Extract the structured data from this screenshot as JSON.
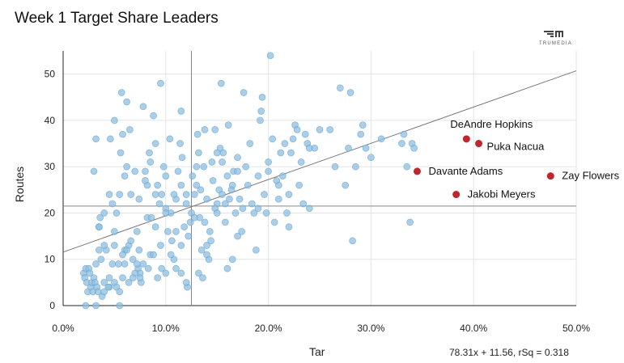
{
  "header": {
    "title": "Week 1 Target Share Leaders",
    "logo_text": "TRUMEDIA"
  },
  "fit_equation": "78.31x + 11.56, rSq = 0.318",
  "colors": {
    "point": "#8fbfe0",
    "point_stroke": "#5f9ec9",
    "highlight": "#c0272d",
    "grid": "#e4e4e4",
    "refline": "#888888"
  },
  "chart_data": {
    "type": "scatter",
    "title": "Week 1 Target Share Leaders",
    "xlabel": "Tar",
    "ylabel": "Routes",
    "xlim": [
      0,
      0.5
    ],
    "ylim": [
      0,
      55
    ],
    "xticks": [
      0.0,
      0.1,
      0.2,
      0.3,
      0.4,
      0.5
    ],
    "xtick_labels": [
      "0.0%",
      "10.0%",
      "20.0%",
      "30.0%",
      "40.0%",
      "50.0%"
    ],
    "yticks": [
      0,
      10,
      20,
      30,
      40,
      50
    ],
    "ytick_labels": [
      "0",
      "10",
      "20",
      "30",
      "40",
      "50"
    ],
    "grid": true,
    "reference_lines": {
      "x_mean": 0.125,
      "y_mean": 21.5
    },
    "trendline": {
      "slope": 78.31,
      "intercept": 11.56
    },
    "highlighted": [
      {
        "name": "DeAndre Hopkins",
        "x": 0.393,
        "y": 36
      },
      {
        "name": "Puka Nacua",
        "x": 0.405,
        "y": 35
      },
      {
        "name": "Davante Adams",
        "x": 0.345,
        "y": 29
      },
      {
        "name": "Zay Flowers",
        "x": 0.475,
        "y": 28
      },
      {
        "name": "Jakobi Meyers",
        "x": 0.383,
        "y": 24
      }
    ],
    "points": [
      [
        0.02,
        7
      ],
      [
        0.021,
        6
      ],
      [
        0.022,
        8
      ],
      [
        0.023,
        5
      ],
      [
        0.024,
        3
      ],
      [
        0.025,
        8
      ],
      [
        0.026,
        7
      ],
      [
        0.027,
        4
      ],
      [
        0.028,
        5
      ],
      [
        0.029,
        3
      ],
      [
        0.03,
        6
      ],
      [
        0.031,
        5
      ],
      [
        0.032,
        9
      ],
      [
        0.033,
        4
      ],
      [
        0.034,
        3
      ],
      [
        0.035,
        17
      ],
      [
        0.036,
        19
      ],
      [
        0.037,
        10
      ],
      [
        0.038,
        2
      ],
      [
        0.04,
        5
      ],
      [
        0.04,
        3
      ],
      [
        0.045,
        6
      ],
      [
        0.045,
        4
      ],
      [
        0.048,
        9
      ],
      [
        0.05,
        5
      ],
      [
        0.052,
        4
      ],
      [
        0.055,
        3
      ],
      [
        0.058,
        6
      ],
      [
        0.06,
        9
      ],
      [
        0.022,
        0
      ],
      [
        0.032,
        0
      ],
      [
        0.055,
        0
      ],
      [
        0.03,
        29
      ],
      [
        0.032,
        36
      ],
      [
        0.035,
        17
      ],
      [
        0.04,
        20
      ],
      [
        0.042,
        12
      ],
      [
        0.045,
        24
      ],
      [
        0.048,
        22
      ],
      [
        0.05,
        16
      ],
      [
        0.052,
        20
      ],
      [
        0.055,
        24
      ],
      [
        0.056,
        33
      ],
      [
        0.057,
        46
      ],
      [
        0.058,
        37
      ],
      [
        0.06,
        28
      ],
      [
        0.062,
        30
      ],
      [
        0.064,
        13
      ],
      [
        0.065,
        38
      ],
      [
        0.066,
        24
      ],
      [
        0.068,
        10
      ],
      [
        0.07,
        29
      ],
      [
        0.072,
        16
      ],
      [
        0.073,
        8
      ],
      [
        0.074,
        12
      ],
      [
        0.075,
        7
      ],
      [
        0.076,
        5
      ],
      [
        0.078,
        43
      ],
      [
        0.08,
        29
      ],
      [
        0.082,
        19
      ],
      [
        0.084,
        33
      ],
      [
        0.085,
        11
      ],
      [
        0.086,
        19
      ],
      [
        0.088,
        41
      ],
      [
        0.09,
        35
      ],
      [
        0.092,
        26
      ],
      [
        0.094,
        22
      ],
      [
        0.095,
        48
      ],
      [
        0.096,
        24
      ],
      [
        0.098,
        30
      ],
      [
        0.1,
        21
      ],
      [
        0.102,
        16
      ],
      [
        0.104,
        36
      ],
      [
        0.105,
        20
      ],
      [
        0.106,
        14
      ],
      [
        0.108,
        10
      ],
      [
        0.11,
        8
      ],
      [
        0.112,
        29
      ],
      [
        0.114,
        35
      ],
      [
        0.115,
        42
      ],
      [
        0.116,
        32
      ],
      [
        0.118,
        17
      ],
      [
        0.12,
        22
      ],
      [
        0.121,
        4
      ],
      [
        0.122,
        15
      ],
      [
        0.124,
        18
      ],
      [
        0.126,
        28
      ],
      [
        0.128,
        24
      ],
      [
        0.13,
        30
      ],
      [
        0.131,
        37
      ],
      [
        0.132,
        33
      ],
      [
        0.133,
        19
      ],
      [
        0.134,
        25
      ],
      [
        0.135,
        12
      ],
      [
        0.137,
        30
      ],
      [
        0.138,
        18
      ],
      [
        0.14,
        23
      ],
      [
        0.142,
        10
      ],
      [
        0.143,
        16
      ],
      [
        0.145,
        31
      ],
      [
        0.146,
        27
      ],
      [
        0.148,
        38
      ],
      [
        0.15,
        22
      ],
      [
        0.152,
        25
      ],
      [
        0.153,
        34
      ],
      [
        0.154,
        48
      ],
      [
        0.155,
        31
      ],
      [
        0.156,
        33
      ],
      [
        0.158,
        18
      ],
      [
        0.16,
        28
      ],
      [
        0.161,
        39
      ],
      [
        0.162,
        23
      ],
      [
        0.164,
        25
      ],
      [
        0.165,
        10
      ],
      [
        0.166,
        29
      ],
      [
        0.168,
        20
      ],
      [
        0.17,
        32
      ],
      [
        0.172,
        23
      ],
      [
        0.174,
        16
      ],
      [
        0.176,
        46
      ],
      [
        0.178,
        30
      ],
      [
        0.18,
        26
      ],
      [
        0.182,
        35
      ],
      [
        0.184,
        22
      ],
      [
        0.186,
        20
      ],
      [
        0.188,
        12
      ],
      [
        0.19,
        21
      ],
      [
        0.192,
        40
      ],
      [
        0.193,
        42
      ],
      [
        0.194,
        45
      ],
      [
        0.196,
        24
      ],
      [
        0.198,
        20
      ],
      [
        0.2,
        29
      ],
      [
        0.202,
        54
      ],
      [
        0.204,
        36
      ],
      [
        0.206,
        18
      ],
      [
        0.208,
        27
      ],
      [
        0.21,
        23
      ],
      [
        0.212,
        33
      ],
      [
        0.214,
        28
      ],
      [
        0.216,
        35
      ],
      [
        0.218,
        20
      ],
      [
        0.22,
        17
      ],
      [
        0.222,
        33
      ],
      [
        0.224,
        36
      ],
      [
        0.226,
        39
      ],
      [
        0.228,
        38
      ],
      [
        0.23,
        26
      ],
      [
        0.232,
        31
      ],
      [
        0.234,
        22
      ],
      [
        0.236,
        37
      ],
      [
        0.238,
        35
      ],
      [
        0.24,
        34
      ],
      [
        0.245,
        34
      ],
      [
        0.25,
        38
      ],
      [
        0.26,
        38
      ],
      [
        0.265,
        30
      ],
      [
        0.27,
        47
      ],
      [
        0.275,
        26
      ],
      [
        0.278,
        34
      ],
      [
        0.28,
        46
      ],
      [
        0.282,
        14
      ],
      [
        0.285,
        30
      ],
      [
        0.29,
        37
      ],
      [
        0.292,
        39
      ],
      [
        0.295,
        34
      ],
      [
        0.3,
        32
      ],
      [
        0.31,
        36
      ],
      [
        0.33,
        35
      ],
      [
        0.332,
        37
      ],
      [
        0.335,
        30
      ],
      [
        0.338,
        18
      ],
      [
        0.34,
        35
      ],
      [
        0.342,
        34
      ],
      [
        0.046,
        36
      ],
      [
        0.05,
        40
      ],
      [
        0.062,
        44
      ],
      [
        0.074,
        23
      ],
      [
        0.082,
        26
      ],
      [
        0.09,
        17
      ],
      [
        0.1,
        28
      ],
      [
        0.11,
        23
      ],
      [
        0.115,
        26
      ],
      [
        0.12,
        24
      ],
      [
        0.138,
        38
      ],
      [
        0.148,
        21
      ],
      [
        0.158,
        22
      ],
      [
        0.17,
        29
      ],
      [
        0.19,
        28
      ],
      [
        0.2,
        31
      ],
      [
        0.21,
        26
      ],
      [
        0.22,
        24
      ],
      [
        0.24,
        21
      ],
      [
        0.06,
        12
      ],
      [
        0.066,
        14
      ],
      [
        0.07,
        7
      ],
      [
        0.08,
        27
      ],
      [
        0.085,
        31
      ],
      [
        0.09,
        24
      ],
      [
        0.095,
        13
      ],
      [
        0.1,
        20
      ],
      [
        0.108,
        24
      ],
      [
        0.115,
        13
      ],
      [
        0.125,
        20
      ],
      [
        0.14,
        13
      ],
      [
        0.15,
        33
      ],
      [
        0.035,
        12
      ],
      [
        0.04,
        13
      ],
      [
        0.044,
        4
      ],
      [
        0.05,
        13
      ],
      [
        0.054,
        9
      ],
      [
        0.058,
        11
      ],
      [
        0.062,
        12
      ],
      [
        0.064,
        5
      ],
      [
        0.068,
        6
      ],
      [
        0.072,
        9
      ],
      [
        0.075,
        6
      ],
      [
        0.078,
        9
      ],
      [
        0.083,
        8
      ],
      [
        0.088,
        11
      ],
      [
        0.092,
        6
      ],
      [
        0.096,
        8
      ],
      [
        0.1,
        7
      ],
      [
        0.105,
        11
      ],
      [
        0.11,
        16
      ],
      [
        0.115,
        7
      ],
      [
        0.12,
        5
      ],
      [
        0.128,
        19
      ],
      [
        0.13,
        26
      ],
      [
        0.132,
        7
      ],
      [
        0.136,
        6
      ],
      [
        0.14,
        11
      ],
      [
        0.144,
        14
      ],
      [
        0.15,
        20
      ],
      [
        0.155,
        24
      ],
      [
        0.16,
        8
      ],
      [
        0.165,
        26
      ],
      [
        0.17,
        15
      ],
      [
        0.175,
        21
      ]
    ]
  }
}
